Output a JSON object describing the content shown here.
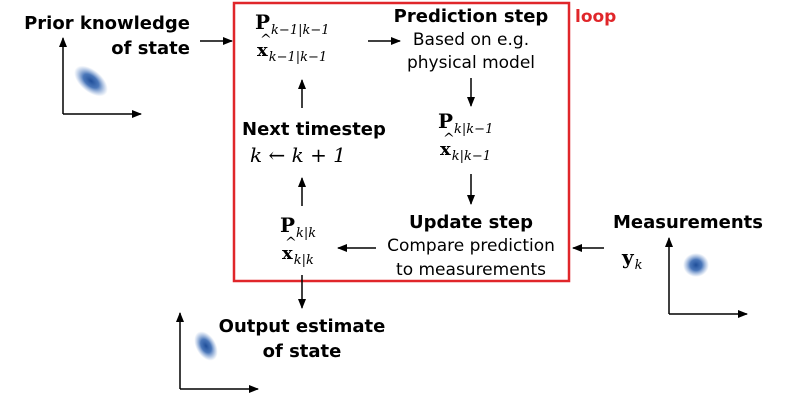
{
  "prior": {
    "line1": "Prior knowledge",
    "line2": "of state"
  },
  "loop_label": "loop",
  "prediction": {
    "title": "Prediction step",
    "line1": "Based on e.g.",
    "line2": "physical model"
  },
  "prior_state": {
    "P": "P",
    "P_sub": "k−1|k−1",
    "x": "x",
    "x_sub": "k−1|k−1"
  },
  "predicted_state": {
    "P": "P",
    "P_sub": "k|k−1",
    "x": "x",
    "x_sub": "k|k−1"
  },
  "next_timestep": {
    "title": "Next timestep",
    "formula": "k ← k + 1"
  },
  "update": {
    "title": "Update step",
    "line1": "Compare prediction",
    "line2": "to measurements"
  },
  "updated_state": {
    "P": "P",
    "P_sub": "k|k",
    "x": "x",
    "x_sub": "k|k"
  },
  "measurements": {
    "title": "Measurements",
    "y": "y",
    "y_sub": "k"
  },
  "output": {
    "line1": "Output estimate",
    "line2": "of state"
  },
  "colors": {
    "loop_box": "#e0262a",
    "blob": "#1f4e99"
  }
}
